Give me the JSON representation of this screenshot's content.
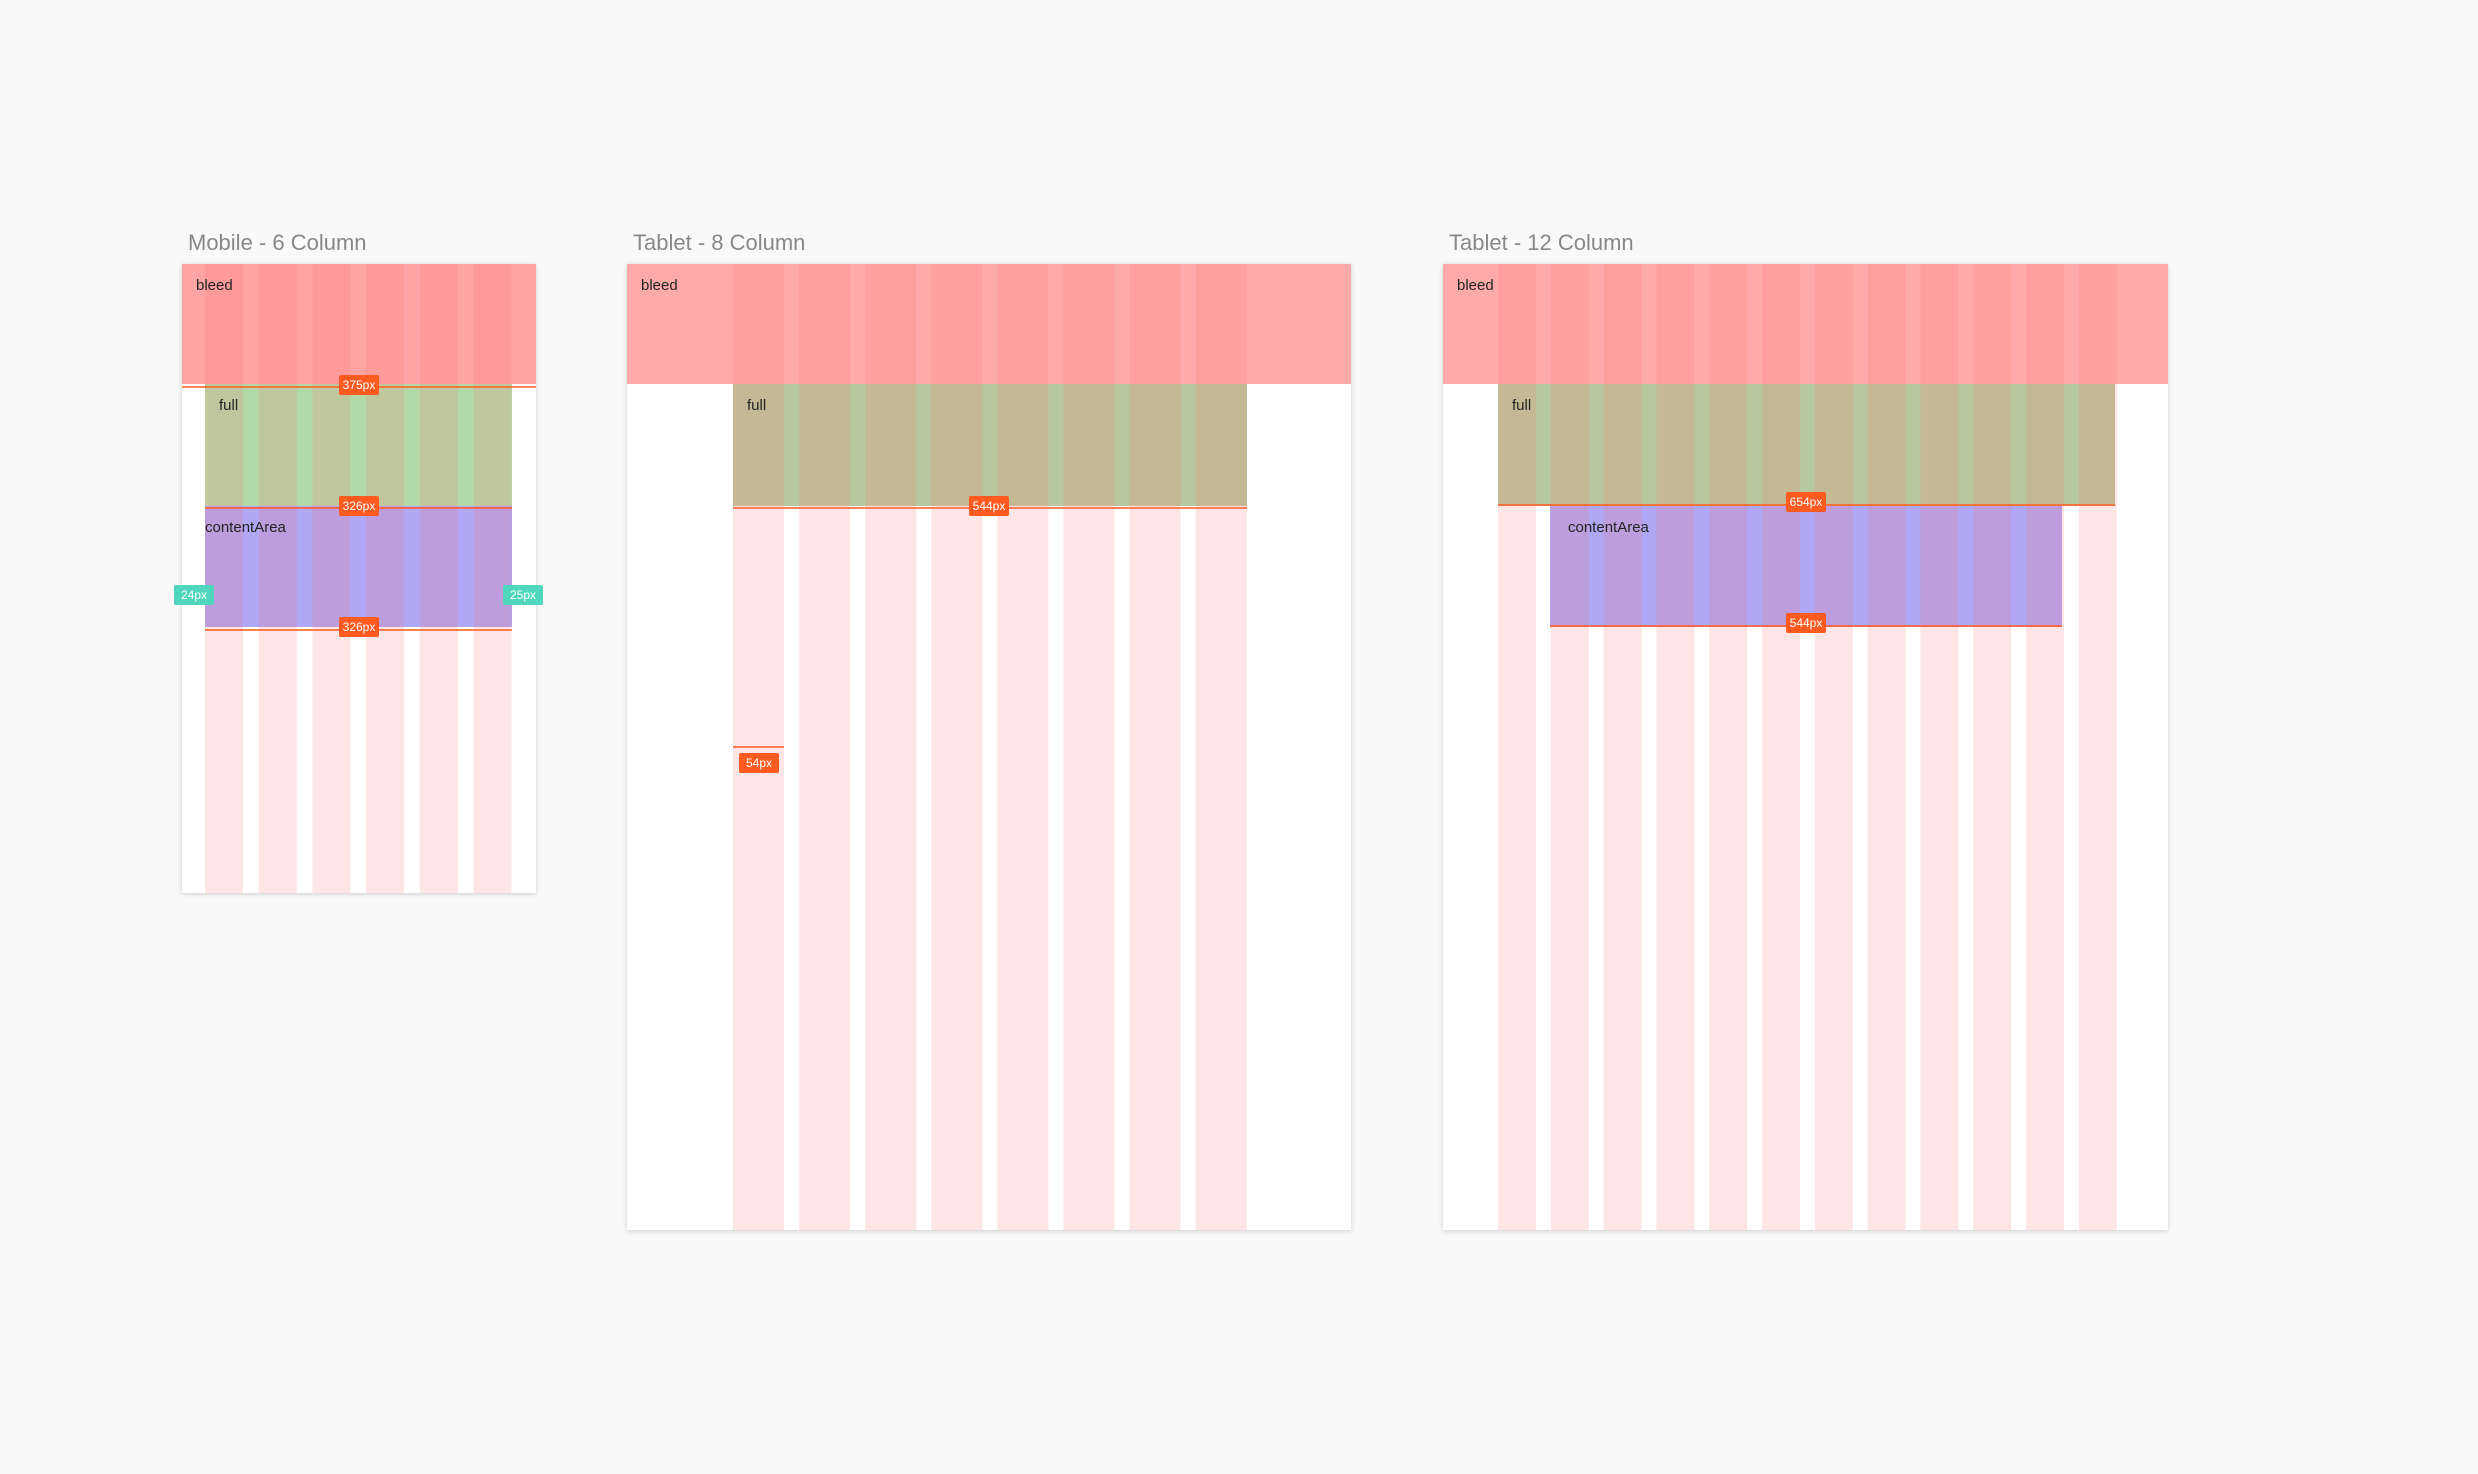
{
  "artboards": [
    {
      "title": "Mobile - 6 Column",
      "layers": [
        "bleed",
        "full",
        "contentArea"
      ],
      "measures": [
        "375px",
        "326px",
        "326px",
        "24px",
        "25px"
      ]
    },
    {
      "title": "Tablet - 8 Column",
      "layers": [
        "bleed",
        "full"
      ],
      "measures": [
        "544px",
        "54px"
      ]
    },
    {
      "title": "Tablet - 12 Column",
      "layers": [
        "bleed",
        "full",
        "contentArea"
      ],
      "measures": [
        "654px",
        "544px"
      ]
    }
  ]
}
